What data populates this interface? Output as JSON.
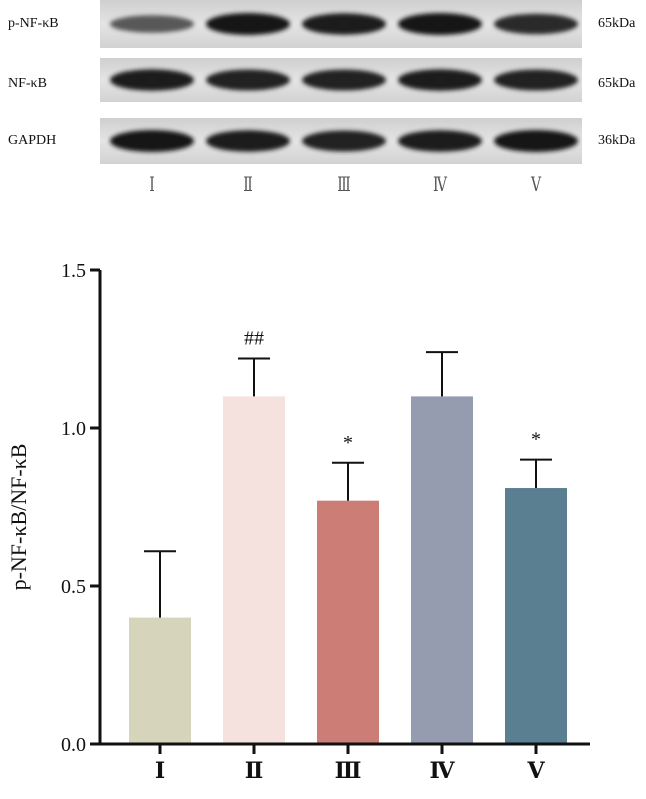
{
  "blot": {
    "rows": [
      {
        "label": "p-NF-κB",
        "mw": "65kDa",
        "intensity": [
          0.55,
          1.0,
          0.95,
          1.0,
          0.85
        ]
      },
      {
        "label": "NF-κB",
        "mw": "65kDa",
        "intensity": [
          0.95,
          0.9,
          0.9,
          0.95,
          0.9
        ]
      },
      {
        "label": "GAPDH",
        "mw": "36kDa",
        "intensity": [
          1.0,
          0.95,
          0.9,
          0.95,
          1.0
        ]
      }
    ],
    "lanes": [
      "Ⅰ",
      "Ⅱ",
      "Ⅲ",
      "Ⅳ",
      "Ⅴ"
    ]
  },
  "chart_data": {
    "type": "bar",
    "categories": [
      "Ⅰ",
      "Ⅱ",
      "Ⅲ",
      "Ⅳ",
      "Ⅴ"
    ],
    "values": [
      0.4,
      1.1,
      0.77,
      1.1,
      0.81
    ],
    "errors": [
      0.21,
      0.12,
      0.12,
      0.14,
      0.09
    ],
    "annotations": [
      "",
      "##",
      "*",
      "",
      "*"
    ],
    "colors": [
      "#d6d4ba",
      "#f5e2df",
      "#cb7d76",
      "#959cb0",
      "#5a7f91"
    ],
    "ylabel": "p-NF-κB/NF-κB",
    "xlabel": "",
    "title": "",
    "ylim": [
      0,
      1.5
    ],
    "yticks": [
      "0.0",
      "0.5",
      "1.0",
      "1.5"
    ],
    "grid": false,
    "legend": false
  }
}
